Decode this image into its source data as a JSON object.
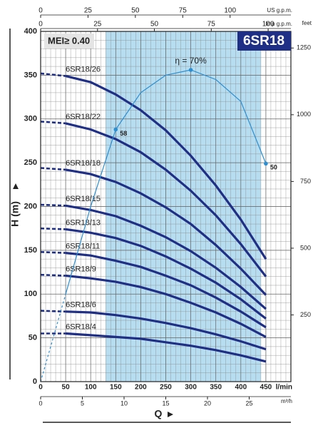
{
  "chart_data": {
    "type": "line",
    "title": "6SR18",
    "subtitle": "MEI≥ 0.40",
    "x_label": "Q",
    "x_unit": "l/min",
    "y_label": "H (m)",
    "x": [
      0,
      50,
      100,
      150,
      200,
      250,
      300,
      350,
      400,
      450
    ],
    "xlim": [
      0,
      500
    ],
    "xticks": [
      0,
      50,
      100,
      150,
      200,
      250,
      300,
      350,
      400,
      450
    ],
    "ylim": [
      0,
      400
    ],
    "yticks": [
      0,
      50,
      100,
      150,
      200,
      250,
      300,
      350,
      400
    ],
    "grid": true,
    "recommended_range": [
      130,
      440
    ],
    "range_color": "#b7ddf0",
    "series": [
      {
        "name": "6SR18/26",
        "color": "#1f2f86",
        "values": [
          352,
          349,
          342,
          328,
          310,
          287,
          258,
          224,
          185,
          140
        ]
      },
      {
        "name": "6SR18/22",
        "color": "#1f2f86",
        "values": [
          297,
          295,
          288,
          277,
          262,
          242,
          218,
          190,
          157,
          120
        ]
      },
      {
        "name": "6SR18/18",
        "color": "#1f2f86",
        "values": [
          244,
          242,
          237,
          228,
          215,
          199,
          180,
          156,
          129,
          99
        ]
      },
      {
        "name": "6SR18/15",
        "color": "#1f2f86",
        "values": [
          202,
          201,
          196,
          189,
          178,
          165,
          149,
          130,
          108,
          83
        ]
      },
      {
        "name": "6SR18/13",
        "color": "#1f2f86",
        "values": [
          175,
          174,
          170,
          164,
          155,
          143,
          129,
          113,
          94,
          72
        ]
      },
      {
        "name": "6SR18/11",
        "color": "#1f2f86",
        "values": [
          148,
          147,
          144,
          138,
          131,
          121,
          110,
          96,
          80,
          62
        ]
      },
      {
        "name": "6SR18/9",
        "color": "#1f2f86",
        "values": [
          122,
          121,
          118,
          114,
          108,
          100,
          90,
          79,
          66,
          51
        ]
      },
      {
        "name": "6SR18/6",
        "color": "#1f2f86",
        "values": [
          81,
          80,
          79,
          76,
          72,
          67,
          61,
          54,
          46,
          37
        ]
      },
      {
        "name": "6SR18/4",
        "color": "#1f2f86",
        "values": [
          55,
          55,
          53,
          51,
          49,
          45,
          41,
          36,
          30,
          23
        ]
      }
    ],
    "efficiency": {
      "color": "#2b8fd2",
      "values": [
        0,
        100,
        200,
        288,
        330,
        350,
        356,
        345,
        320,
        249
      ],
      "markers": [
        {
          "x": 150,
          "y": 288,
          "label": "58"
        },
        {
          "x": 300,
          "y": 356,
          "label": "η = 70%"
        },
        {
          "x": 450,
          "y": 249,
          "label": "50"
        }
      ]
    },
    "top_axes": [
      {
        "unit": "US g.p.m.",
        "lim": [
          0,
          132.1
        ],
        "ticks": [
          0,
          25,
          50,
          75,
          100
        ]
      },
      {
        "unit": "Imp g.p.m.",
        "lim": [
          0,
          110
        ],
        "ticks": [
          0,
          25,
          50,
          75,
          100
        ]
      }
    ],
    "bottom_axis2": {
      "unit": "m³/h",
      "lim": [
        0,
        30
      ],
      "ticks": [
        0,
        5,
        10,
        15,
        20,
        25
      ]
    },
    "right_axis": {
      "unit": "feet",
      "lim": [
        0,
        1312.3
      ],
      "ticks": [
        250,
        500,
        750,
        1000,
        1250
      ]
    }
  }
}
